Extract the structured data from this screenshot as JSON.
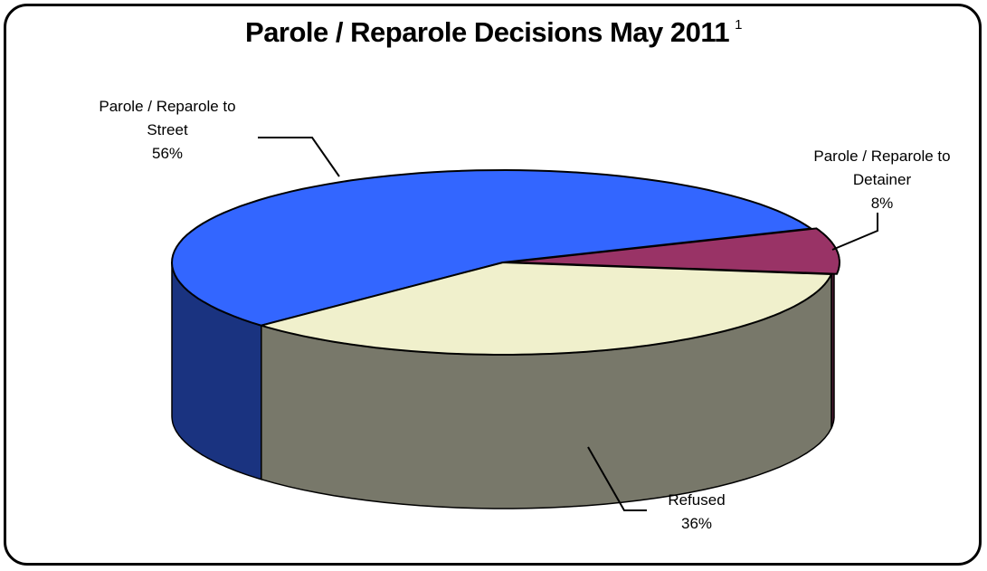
{
  "chart_data": {
    "type": "pie",
    "title": "Parole / Reparole Decisions May 2011",
    "title_footnote": "1",
    "slices": [
      {
        "name": "Parole / Reparole to Street",
        "label_lines": [
          "Parole / Reparole to",
          "Street"
        ],
        "value": 56,
        "value_label": "56%",
        "top_color": "#3366ff",
        "side_color": "#1a3380"
      },
      {
        "name": "Parole / Reparole to Detainer",
        "label_lines": [
          "Parole / Reparole to",
          "Detainer"
        ],
        "value": 8,
        "value_label": "8%",
        "top_color": "#993366",
        "side_color": "#4d1a33"
      },
      {
        "name": "Refused",
        "label_lines": [
          "Refused"
        ],
        "value": 36,
        "value_label": "36%",
        "top_color": "#f0f0cc",
        "side_color": "#78786a"
      }
    ],
    "style": "3d-pie",
    "legend": "none"
  }
}
